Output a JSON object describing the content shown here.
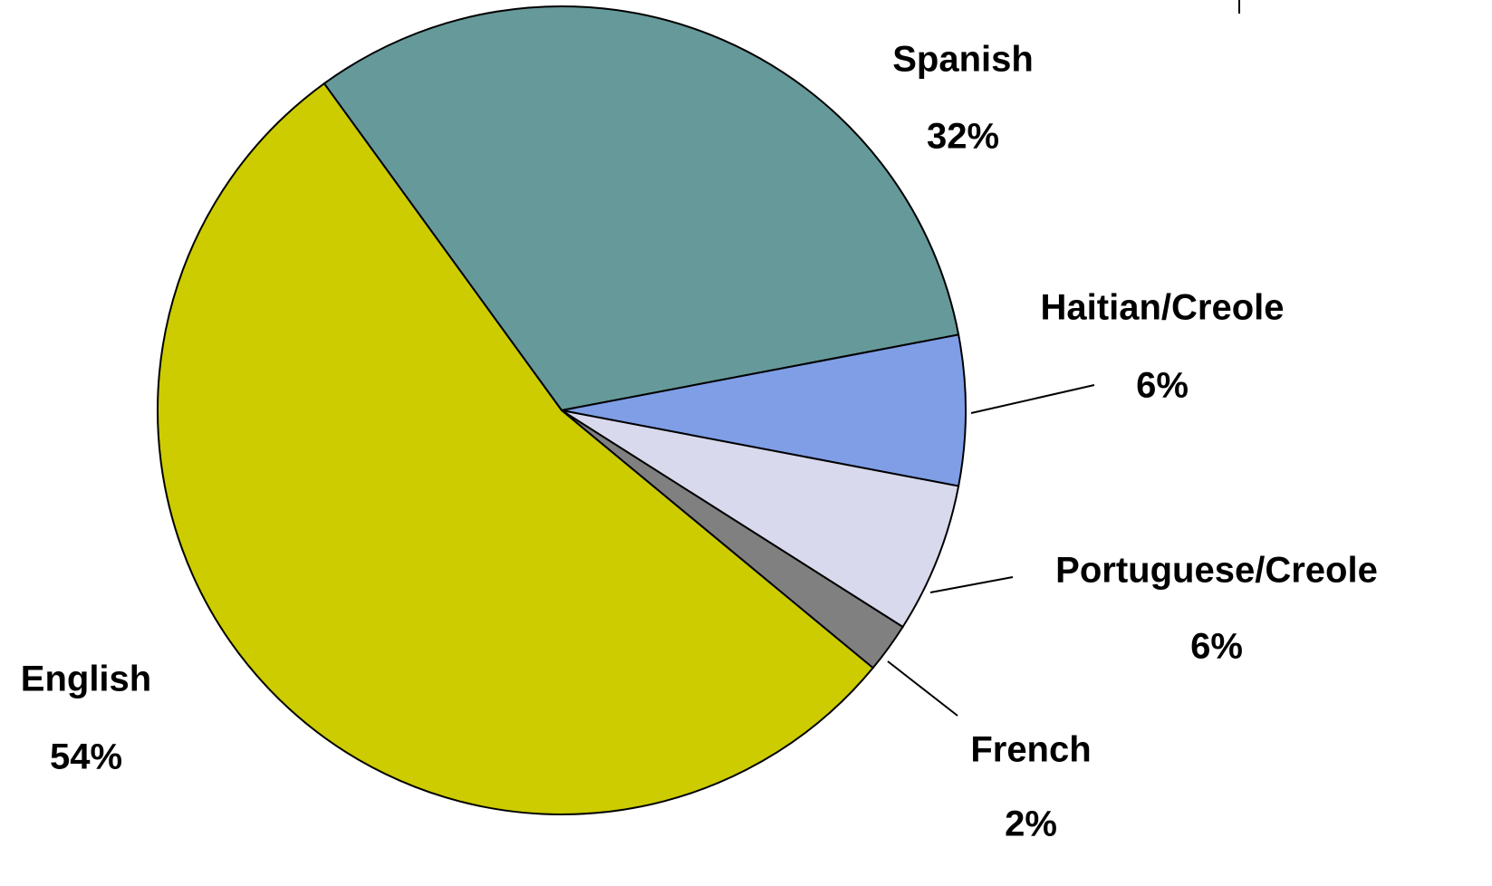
{
  "chart_data": {
    "type": "pie",
    "categories": [
      "Spanish",
      "Haitian/Creole",
      "Portuguese/Creole",
      "French",
      "English"
    ],
    "values": [
      32,
      6,
      6,
      2,
      54
    ],
    "value_labels": [
      "32%",
      "6%",
      "6%",
      "2%",
      "54%"
    ],
    "colors": [
      "#669999",
      "#7f9ee6",
      "#d9d9ed",
      "#808080",
      "#cccc00"
    ]
  }
}
